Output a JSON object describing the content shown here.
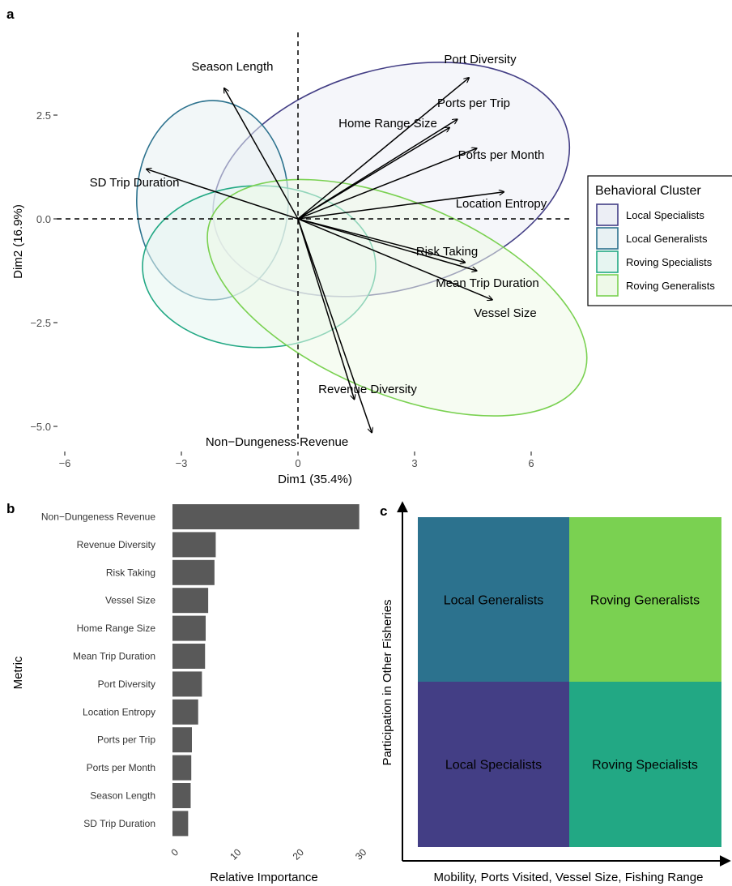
{
  "panels": {
    "a": "a",
    "b": "b",
    "c": "c"
  },
  "chart_data": [
    {
      "type": "scatter",
      "subtype": "pca-biplot",
      "xlabel": "Dim1 (35.4%)",
      "ylabel": "Dim2 (16.9%)",
      "xlim": [
        -6.2,
        7.6
      ],
      "ylim": [
        -5.6,
        4.8
      ],
      "x_ticks": [
        -6,
        -3,
        0,
        3,
        6
      ],
      "x_tick_labels": [
        "−6",
        "−3",
        "0",
        "3",
        "6"
      ],
      "y_ticks": [
        2.5,
        0.0,
        -2.5,
        -5.0
      ],
      "y_tick_labels": [
        "2.5",
        "0.0",
        "−2.5",
        "−5.0"
      ],
      "reference_lines": "dashed lines at x = 0 and y = 0",
      "grid": false,
      "vectors": [
        {
          "label": "Port Diversity",
          "x": 4.4,
          "y": 3.4
        },
        {
          "label": "Ports per Trip",
          "x": 4.1,
          "y": 2.4
        },
        {
          "label": "Home Range Size",
          "x": 3.9,
          "y": 2.2
        },
        {
          "label": "Ports per Month",
          "x": 4.6,
          "y": 1.7
        },
        {
          "label": "Location Entropy",
          "x": 5.3,
          "y": 0.65
        },
        {
          "label": "Risk Taking",
          "x": 4.3,
          "y": -1.05
        },
        {
          "label": "Mean Trip Duration",
          "x": 4.6,
          "y": -1.25
        },
        {
          "label": "Vessel Size",
          "x": 5.0,
          "y": -1.95
        },
        {
          "label": "Revenue Diversity",
          "x": 1.45,
          "y": -4.35
        },
        {
          "label": "Non−Dungeness Revenue",
          "x": 1.9,
          "y": -5.15
        },
        {
          "label": "Season Length",
          "x": -1.9,
          "y": 3.15
        },
        {
          "label": "SD Trip Duration",
          "x": -3.9,
          "y": 1.2
        }
      ],
      "ellipses": [
        {
          "cluster": "Local Specialists",
          "cx": 2.4,
          "cy": 0.95,
          "rx": 4.7,
          "ry": 2.65,
          "rotation_deg": -16
        },
        {
          "cluster": "Local Generalists",
          "cx": -2.2,
          "cy": 0.45,
          "rx": 1.95,
          "ry": 2.4,
          "rotation_deg": 0
        },
        {
          "cluster": "Roving Specialists",
          "cx": -1.0,
          "cy": -1.15,
          "rx": 3.0,
          "ry": 1.95,
          "rotation_deg": 0
        },
        {
          "cluster": "Roving Generalists",
          "cx": 2.55,
          "cy": -1.9,
          "rx": 5.2,
          "ry": 2.3,
          "rotation_deg": 23
        }
      ],
      "legend": {
        "title": "Behavioral Cluster",
        "placement": "right",
        "entries": [
          {
            "name": "Local Specialists",
            "stroke": "#433e85",
            "fill": "#eceef5"
          },
          {
            "name": "Local Generalists",
            "stroke": "#2c728e",
            "fill": "#e8f1f3"
          },
          {
            "name": "Roving Specialists",
            "stroke": "#22a884",
            "fill": "#e6f5f1"
          },
          {
            "name": "Roving Generalists",
            "stroke": "#7ad151",
            "fill": "#eef9e8"
          }
        ]
      }
    },
    {
      "type": "bar",
      "orientation": "horizontal",
      "xlabel": "Relative Importance",
      "ylabel": "Metric",
      "xlim": [
        0,
        31
      ],
      "x_ticks": [
        0,
        10,
        20,
        30
      ],
      "x_tick_labels": [
        "0",
        "10",
        "20",
        "30"
      ],
      "bar_color": "#595959",
      "categories": [
        "Non−Dungeness Revenue",
        "Revenue Diversity",
        "Risk Taking",
        "Vessel Size",
        "Home Range Size",
        "Mean Trip Duration",
        "Port Diversity",
        "Location Entropy",
        "Ports per Trip",
        "Ports per Month",
        "Season Length",
        "SD Trip Duration"
      ],
      "values": [
        29.8,
        6.9,
        6.7,
        5.7,
        5.3,
        5.2,
        4.7,
        4.1,
        3.1,
        3.0,
        2.9,
        2.5
      ]
    },
    {
      "type": "table",
      "subtype": "quadrant-diagram",
      "xlabel": "Mobility, Ports Visited, Vessel Size, Fishing Range",
      "ylabel": "Participation in Other Fisheries",
      "cells": [
        {
          "label": "Local Generalists",
          "row": "top",
          "col": "left",
          "color": "#2c728e"
        },
        {
          "label": "Roving Generalists",
          "row": "top",
          "col": "right",
          "color": "#7ad151"
        },
        {
          "label": "Local Specialists",
          "row": "bottom",
          "col": "left",
          "color": "#433e85"
        },
        {
          "label": "Roving Specialists",
          "row": "bottom",
          "col": "right",
          "color": "#22a884"
        }
      ]
    }
  ]
}
